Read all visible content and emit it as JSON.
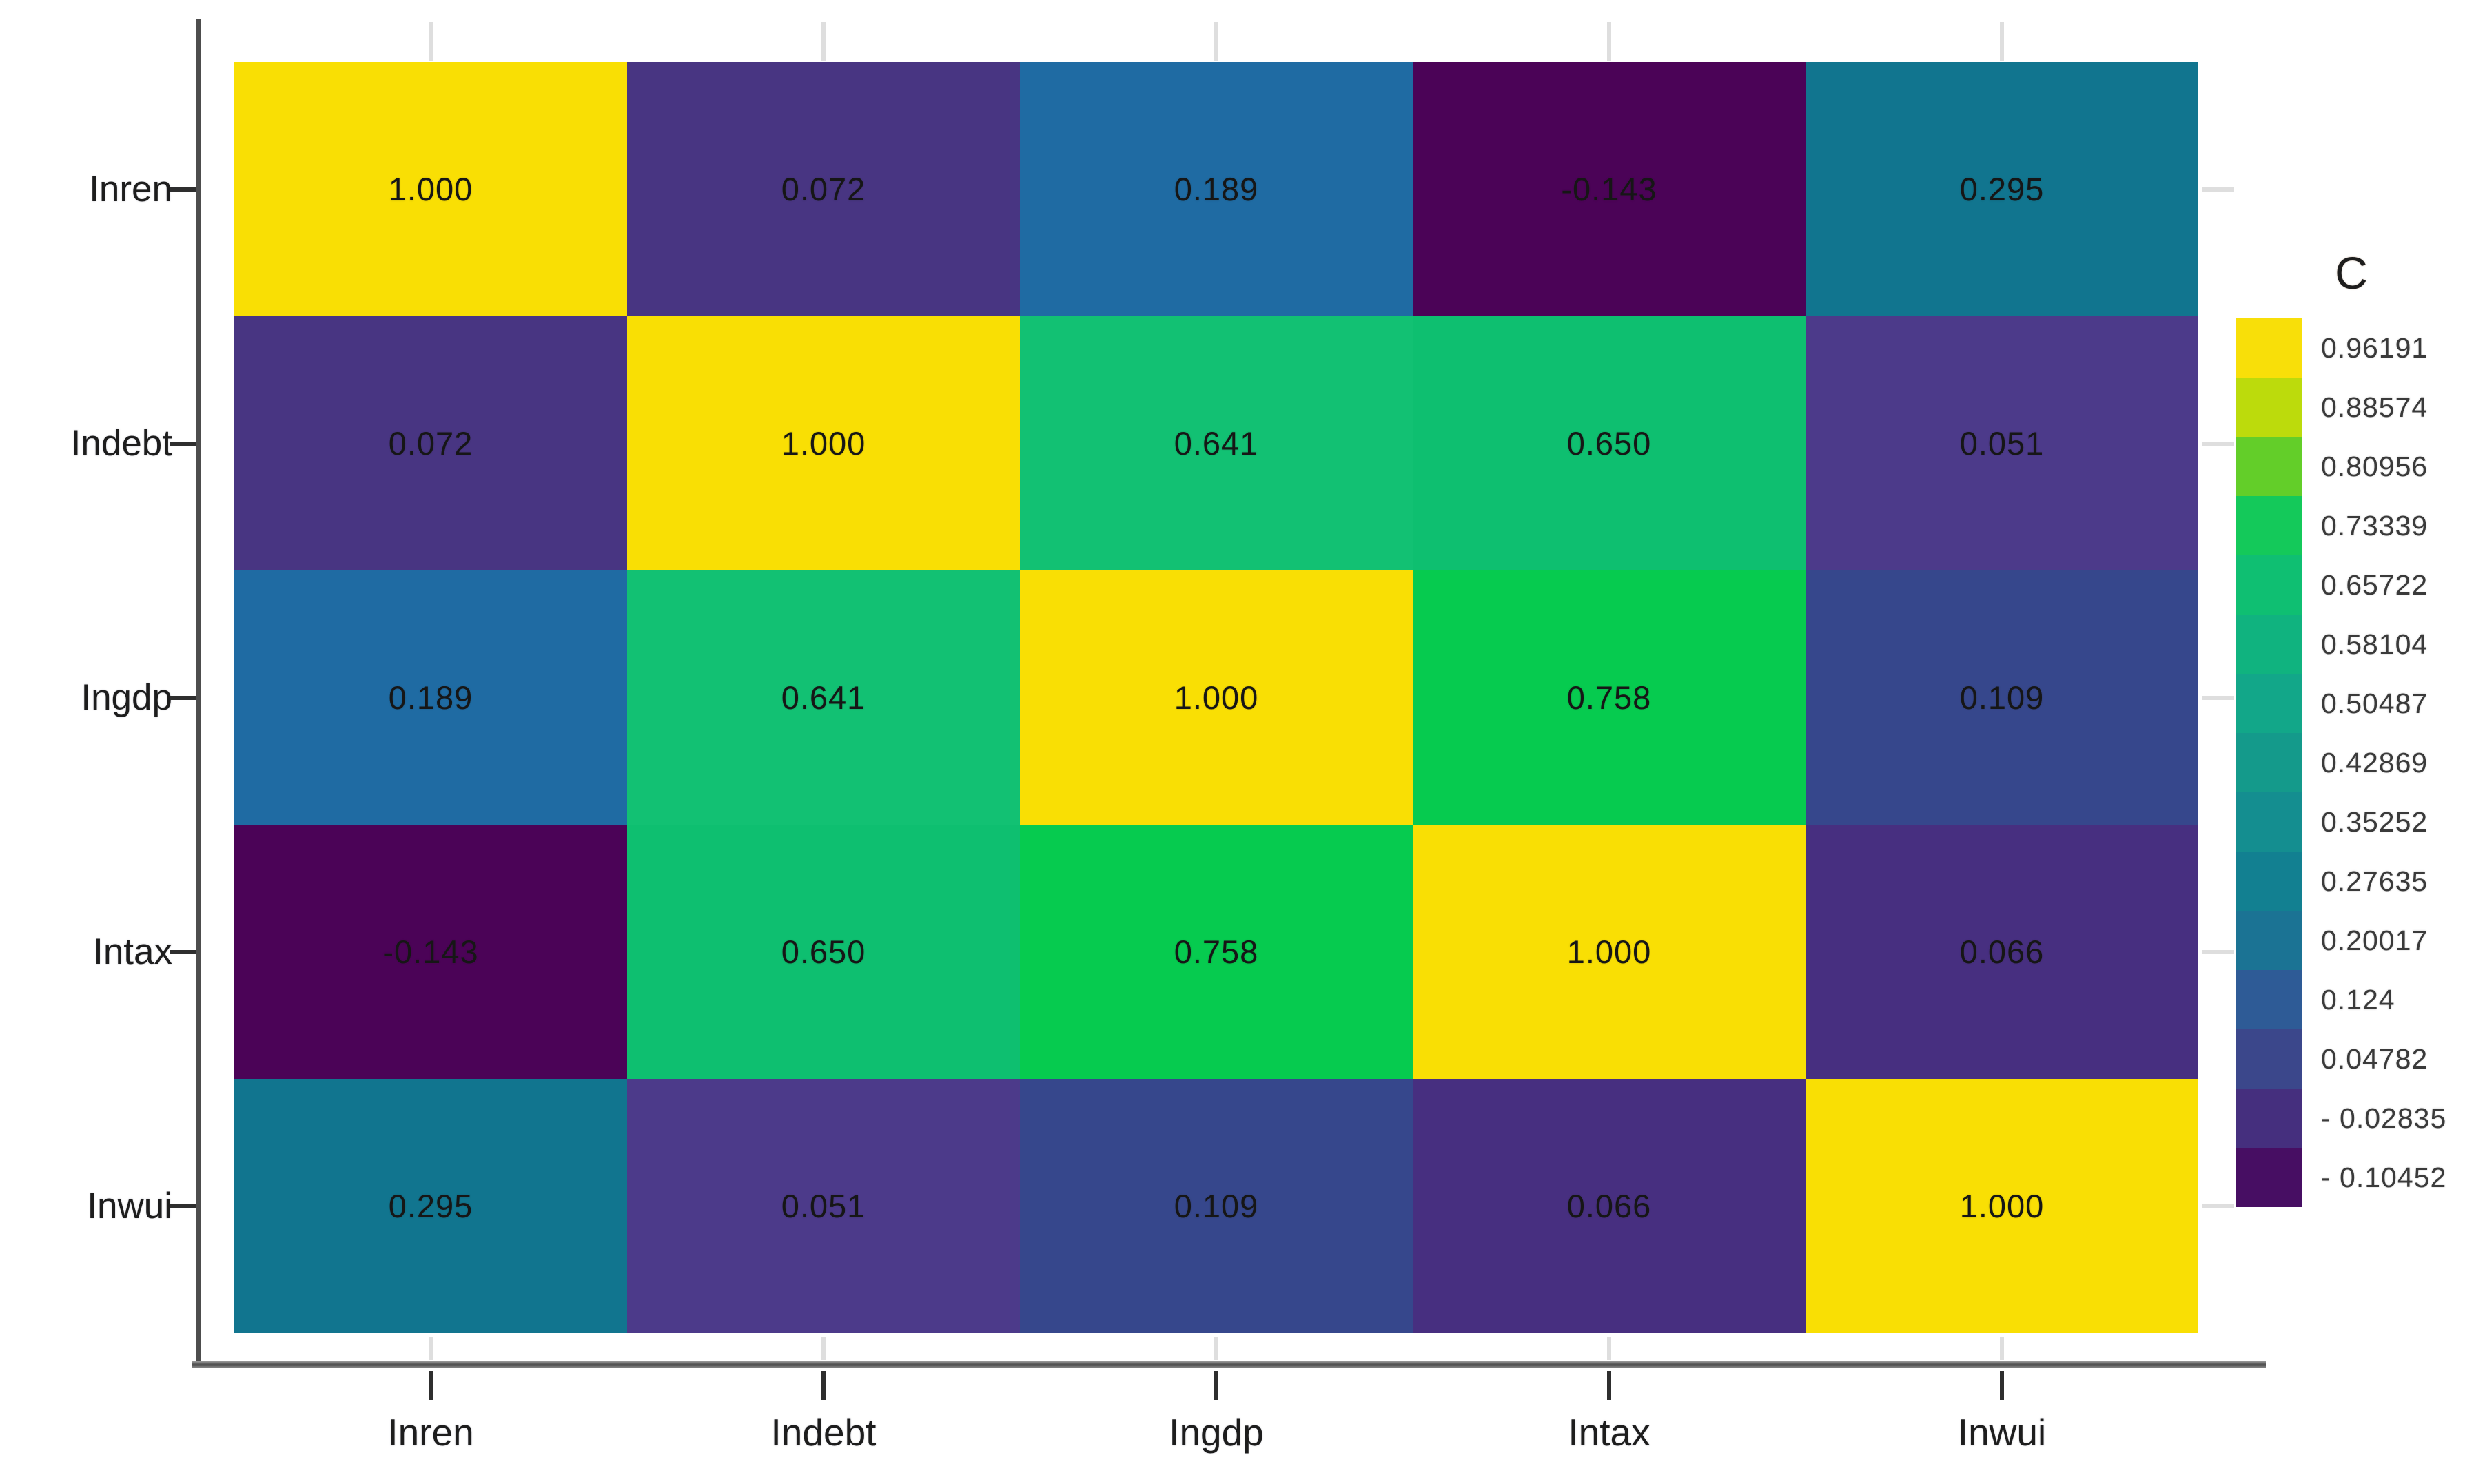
{
  "figure_title": "",
  "colors": {
    "background": "#ffffff",
    "y_axis_line": "#4d4d4d",
    "x_axis_line": "#6f6f6f",
    "dark_tick": "#2e2e2e",
    "light_tick": "#dedede",
    "cell_text": "#161616",
    "axis_text": "#1d1d1d",
    "legend_text": "#3a3a3a"
  },
  "chart_data": {
    "type": "heatmap",
    "title": "",
    "xlabel": "",
    "ylabel": "",
    "colormap": "viridis-discrete",
    "grid": "off",
    "x_categories": [
      "Inren",
      "Indebt",
      "Ingdp",
      "Intax",
      "Inwui"
    ],
    "y_categories": [
      "Inren",
      "Indebt",
      "Ingdp",
      "Intax",
      "Inwui"
    ],
    "values": [
      [
        1.0,
        0.072,
        0.189,
        -0.143,
        0.295
      ],
      [
        0.072,
        1.0,
        0.641,
        0.65,
        0.051
      ],
      [
        0.189,
        0.641,
        1.0,
        0.758,
        0.109
      ],
      [
        -0.143,
        0.65,
        0.758,
        1.0,
        0.066
      ],
      [
        0.295,
        0.051,
        0.109,
        0.066,
        1.0
      ]
    ],
    "cell_labels": [
      [
        "1.000",
        "0.072",
        "0.189",
        "-0.143",
        "0.295"
      ],
      [
        "0.072",
        "1.000",
        "0.641",
        "0.650",
        "0.051"
      ],
      [
        "0.189",
        "0.641",
        "1.000",
        "0.758",
        "0.109"
      ],
      [
        "-0.143",
        "0.650",
        "0.758",
        "1.000",
        "0.066"
      ],
      [
        "0.295",
        "0.051",
        "0.109",
        "0.066",
        "1.000"
      ]
    ],
    "cell_colors": [
      [
        "#F9DF04",
        "#483582",
        "#1F6BA3",
        "#4B0357",
        "#11758F"
      ],
      [
        "#483582",
        "#F9DF04",
        "#12C173",
        "#0EBF70",
        "#4C3A8A"
      ],
      [
        "#1F6BA3",
        "#12C173",
        "#F9DF04",
        "#06CB4F",
        "#36478C"
      ],
      [
        "#4B0357",
        "#0EBF70",
        "#06CB4F",
        "#F9DF04",
        "#472F80"
      ],
      [
        "#11758F",
        "#4C3A8A",
        "#36478C",
        "#472F80",
        "#F9DF04"
      ]
    ],
    "value_range": [
      -0.143,
      1.0
    ],
    "legend": {
      "title": "C",
      "position": "right",
      "labels": [
        "0.96191",
        "0.88574",
        "0.80956",
        "0.73339",
        "0.65722",
        "0.58104",
        "0.50487",
        "0.42869",
        "0.35252",
        "0.27635",
        "0.20017",
        "0.124",
        "0.04782",
        "- 0.02835",
        "- 0.10452"
      ],
      "colors": [
        "#F8DF09",
        "#BCDB0C",
        "#63CE29",
        "#14C95A",
        "#0FBF72",
        "#10B37F",
        "#12A789",
        "#149A8B",
        "#148E90",
        "#128091",
        "#1B7394",
        "#2E5B96",
        "#3B478B",
        "#452F7E",
        "#470E63"
      ]
    }
  }
}
